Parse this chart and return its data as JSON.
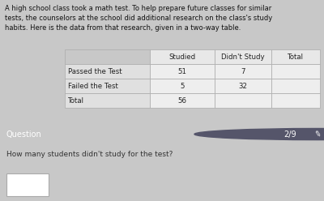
{
  "intro_text": "A high school class took a math test. To help prepare future classes for similar\ntests, the counselors at the school did additional research on the class's study\nhabits. Here is the data from that research, given in a two-way table.",
  "col_headers": [
    "Studied",
    "Didn't Study",
    "Total"
  ],
  "row_headers": [
    "Passed the Test",
    "Failed the Test",
    "Total"
  ],
  "table_data": [
    [
      "51",
      "7",
      ""
    ],
    [
      "5",
      "32",
      ""
    ],
    [
      "56",
      "",
      ""
    ]
  ],
  "question_label": "Question",
  "question_number": "2/9",
  "question_text": "How many students didn't study for the test?",
  "top_bg": "#c8c8c8",
  "question_bar_color": "#7b7b8b",
  "question_text_color": "#ffffff",
  "bottom_bg": "#d4d4d4",
  "table_header_bg": "#e8e8e8",
  "table_cell_bg": "#e0e0e0",
  "table_data_bg": "#eeeeee",
  "answer_box_color": "#ffffff"
}
